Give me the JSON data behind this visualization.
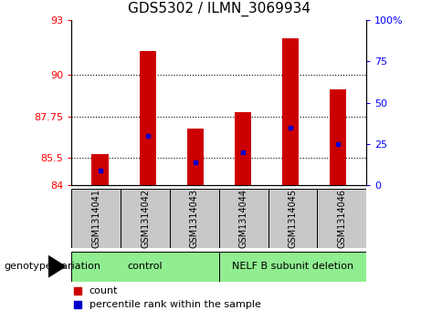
{
  "title": "GDS5302 / ILMN_3069934",
  "samples": [
    "GSM1314041",
    "GSM1314042",
    "GSM1314043",
    "GSM1314044",
    "GSM1314045",
    "GSM1314046"
  ],
  "count_values": [
    85.72,
    91.3,
    87.1,
    88.0,
    92.0,
    89.2
  ],
  "percentile_values": [
    9,
    30,
    14,
    20,
    35,
    25
  ],
  "bar_bottom": 84,
  "ylim_left": [
    84,
    93
  ],
  "ylim_right": [
    0,
    100
  ],
  "left_yticks": [
    84,
    85.5,
    87.75,
    90,
    93
  ],
  "right_yticks": [
    0,
    25,
    50,
    75,
    100
  ],
  "right_yticklabels": [
    "0",
    "25",
    "50",
    "75",
    "100%"
  ],
  "bar_color": "#cc0000",
  "percentile_color": "#0000cc",
  "bar_width": 0.35,
  "control_label": "control",
  "deletion_label": "NELF B subunit deletion",
  "genotype_label": "genotype/variation",
  "legend_count": "count",
  "legend_percentile": "percentile rank within the sample",
  "sample_bg_color": "#c8c8c8",
  "control_bg": "#90ee90",
  "deletion_bg": "#90ee90",
  "plot_bg": "#ffffff",
  "title_fontsize": 11,
  "tick_fontsize": 8,
  "sample_fontsize": 7,
  "genotype_fontsize": 8,
  "legend_fontsize": 8
}
